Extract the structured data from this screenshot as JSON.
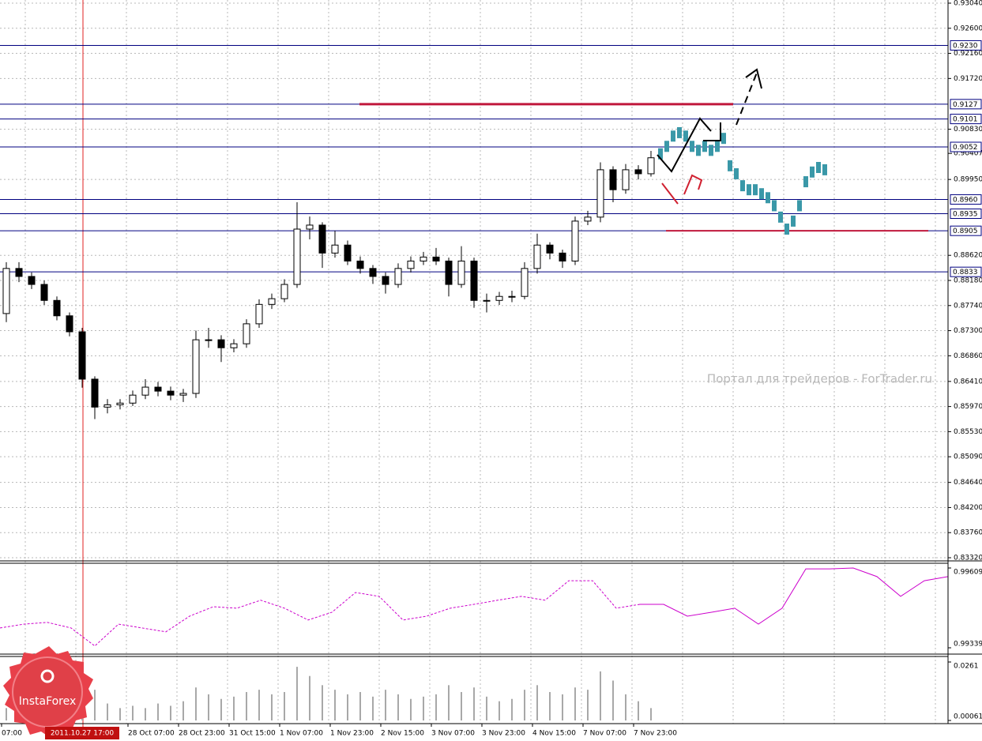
{
  "chart_data": [
    {
      "type": "candlestick",
      "color": "#000000",
      "ylim": [
        0.8332,
        0.9304
      ],
      "yticks": [
        {
          "value": 0.9304,
          "label": "0.93040"
        },
        {
          "value": 0.926,
          "label": "0.92600"
        },
        {
          "value": 0.9216,
          "label": "0.92160"
        },
        {
          "value": 0.9172,
          "label": "0.91720"
        },
        {
          "value": 0.9083,
          "label": "0.90830"
        },
        {
          "value": 0.8995,
          "label": "0.89950"
        },
        {
          "value": 0.8862,
          "label": "0.88620"
        },
        {
          "value": 0.8818,
          "label": "0.88180"
        },
        {
          "value": 0.8774,
          "label": "0.87740"
        },
        {
          "value": 0.873,
          "label": "0.87300"
        },
        {
          "value": 0.8686,
          "label": "0.86860"
        },
        {
          "value": 0.8641,
          "label": "0.86410"
        },
        {
          "value": 0.8597,
          "label": "0.85970"
        },
        {
          "value": 0.8553,
          "label": "0.85530"
        },
        {
          "value": 0.8509,
          "label": "0.85090"
        },
        {
          "value": 0.8464,
          "label": "0.84640"
        },
        {
          "value": 0.842,
          "label": "0.84200"
        },
        {
          "value": 0.8376,
          "label": "0.83760"
        },
        {
          "value": 0.8332,
          "label": "0.83320"
        }
      ],
      "last_price": {
        "value": 0.90407,
        "label": "0.90407"
      },
      "levels": [
        {
          "value": 0.923,
          "label": "0.9230"
        },
        {
          "value": 0.9127,
          "label": "0.9127"
        },
        {
          "value": 0.9101,
          "label": "0.9101"
        },
        {
          "value": 0.9052,
          "label": "0.9052"
        },
        {
          "value": 0.896,
          "label": "0.8960"
        },
        {
          "value": 0.8935,
          "label": "0.8935"
        },
        {
          "value": 0.8905,
          "label": "0.8905"
        },
        {
          "value": 0.8833,
          "label": "0.8833"
        }
      ],
      "level_color": "#000080",
      "highlight_color": "#c0183c",
      "open": [
        0.876,
        0.8839,
        0.8825,
        0.8811,
        0.8783,
        0.8756,
        0.8728,
        0.8645,
        0.8596,
        0.86,
        0.8603,
        0.8617,
        0.8631,
        0.8624,
        0.8617,
        0.862,
        0.8714,
        0.8714,
        0.87,
        0.8707,
        0.8742,
        0.8776,
        0.8786,
        0.8811,
        0.8908,
        0.8915,
        0.8866,
        0.888,
        0.8852,
        0.8839,
        0.8825,
        0.8811,
        0.8839,
        0.8852,
        0.8859,
        0.8852,
        0.8811,
        0.8852,
        0.8783,
        0.8783,
        0.879,
        0.879,
        0.8839,
        0.888,
        0.8866,
        0.8852,
        0.8922,
        0.8929,
        0.9012,
        0.8977,
        0.9012,
        0.9005
      ],
      "high": [
        0.885,
        0.885,
        0.8832,
        0.8818,
        0.879,
        0.8762,
        0.8735,
        0.865,
        0.861,
        0.861,
        0.8625,
        0.8645,
        0.864,
        0.8632,
        0.8628,
        0.873,
        0.8735,
        0.8722,
        0.8715,
        0.875,
        0.8785,
        0.8795,
        0.882,
        0.8955,
        0.893,
        0.892,
        0.8905,
        0.8888,
        0.886,
        0.8845,
        0.8832,
        0.8848,
        0.886,
        0.8868,
        0.8875,
        0.8858,
        0.8878,
        0.8858,
        0.8795,
        0.8798,
        0.88,
        0.885,
        0.89,
        0.8885,
        0.8872,
        0.893,
        0.894,
        0.9025,
        0.9018,
        0.9022,
        0.902,
        0.9045
      ],
      "low": [
        0.8745,
        0.8815,
        0.8803,
        0.8775,
        0.8748,
        0.872,
        0.863,
        0.8575,
        0.8585,
        0.8592,
        0.8598,
        0.861,
        0.8615,
        0.8608,
        0.8605,
        0.8612,
        0.87,
        0.8675,
        0.8692,
        0.87,
        0.8735,
        0.8768,
        0.878,
        0.8805,
        0.889,
        0.884,
        0.8858,
        0.8845,
        0.883,
        0.8812,
        0.8795,
        0.8805,
        0.8832,
        0.8845,
        0.8845,
        0.879,
        0.8805,
        0.877,
        0.8762,
        0.8775,
        0.878,
        0.8785,
        0.883,
        0.8855,
        0.884,
        0.8845,
        0.8915,
        0.892,
        0.8955,
        0.897,
        0.8995,
        0.9
      ],
      "close": [
        0.8839,
        0.8825,
        0.8811,
        0.8783,
        0.8756,
        0.8728,
        0.8645,
        0.8596,
        0.86,
        0.8603,
        0.8617,
        0.8631,
        0.8624,
        0.8617,
        0.862,
        0.8714,
        0.8714,
        0.87,
        0.8707,
        0.8742,
        0.8776,
        0.8786,
        0.8811,
        0.8908,
        0.8915,
        0.8866,
        0.888,
        0.8852,
        0.8839,
        0.8825,
        0.8811,
        0.8839,
        0.8852,
        0.8859,
        0.8852,
        0.8811,
        0.8852,
        0.8783,
        0.8783,
        0.879,
        0.879,
        0.8839,
        0.888,
        0.8866,
        0.8852,
        0.8922,
        0.8929,
        0.9012,
        0.8977,
        0.9012,
        0.9005,
        0.9033
      ],
      "forecast": {
        "color": "#3a98a8",
        "values": [
          0.904,
          0.9053,
          0.9071,
          0.9077,
          0.9071,
          0.9053,
          0.9046,
          0.9053,
          0.9046,
          0.9053,
          0.9067,
          0.9019,
          0.9005,
          0.8984,
          0.8977,
          0.8977,
          0.897,
          0.8963,
          0.8949,
          0.8929,
          0.8908,
          0.8922,
          0.8949,
          0.8991,
          0.9008,
          0.9016,
          0.9012
        ]
      }
    },
    {
      "type": "line",
      "color": "#cc00cc",
      "ylim": [
        0.99339,
        0.99609
      ],
      "yticks": [
        0.99609,
        0.99339
      ],
      "values": [
        0.99406,
        0.99419,
        0.99425,
        0.99406,
        0.99345,
        0.99419,
        0.99406,
        0.99393,
        0.99446,
        0.99478,
        0.99473,
        0.995,
        0.99473,
        0.99433,
        0.99459,
        0.99526,
        0.99513,
        0.99433,
        0.99446,
        0.99473,
        0.99486,
        0.995,
        0.99513,
        0.995,
        0.99566,
        0.99566,
        0.99473,
        0.99486,
        0.99486,
        0.99446,
        0.99459,
        0.99473,
        0.99419,
        0.99473,
        0.99606,
        0.99606,
        0.99609,
        0.9958,
        0.99513,
        0.99566,
        0.9958
      ]
    },
    {
      "type": "bar",
      "color": "#a8a8a8",
      "ylim": [
        0.00061,
        0.0261
      ],
      "yticks": [
        0.0261,
        0.00061
      ],
      "values": [
        0.006,
        0.008,
        0.007,
        0.009,
        0.01,
        0.012,
        0.016,
        0.014,
        0.008,
        0.006,
        0.007,
        0.006,
        0.008,
        0.007,
        0.009,
        0.015,
        0.012,
        0.01,
        0.011,
        0.013,
        0.014,
        0.012,
        0.013,
        0.024,
        0.02,
        0.016,
        0.014,
        0.012,
        0.013,
        0.011,
        0.014,
        0.012,
        0.01,
        0.011,
        0.012,
        0.016,
        0.013,
        0.015,
        0.011,
        0.009,
        0.01,
        0.014,
        0.016,
        0.013,
        0.012,
        0.015,
        0.014,
        0.022,
        0.018,
        0.012,
        0.009,
        0.006
      ]
    }
  ],
  "time_axis": [
    "07:00",
    "28 Oct 07:00",
    "28 Oct 23:00",
    "31 Oct 15:00",
    "1 Nov 07:00",
    "1 Nov 23:00",
    "2 Nov 15:00",
    "3 Nov 07:00",
    "3 Nov 23:00",
    "4 Nov 15:00",
    "7 Nov 07:00",
    "7 Nov 23:00"
  ],
  "cursor_time": "2011.10.27 17:00",
  "watermark": "Портал для трейдеров - ForTrader.ru",
  "logo": "InstaForex"
}
